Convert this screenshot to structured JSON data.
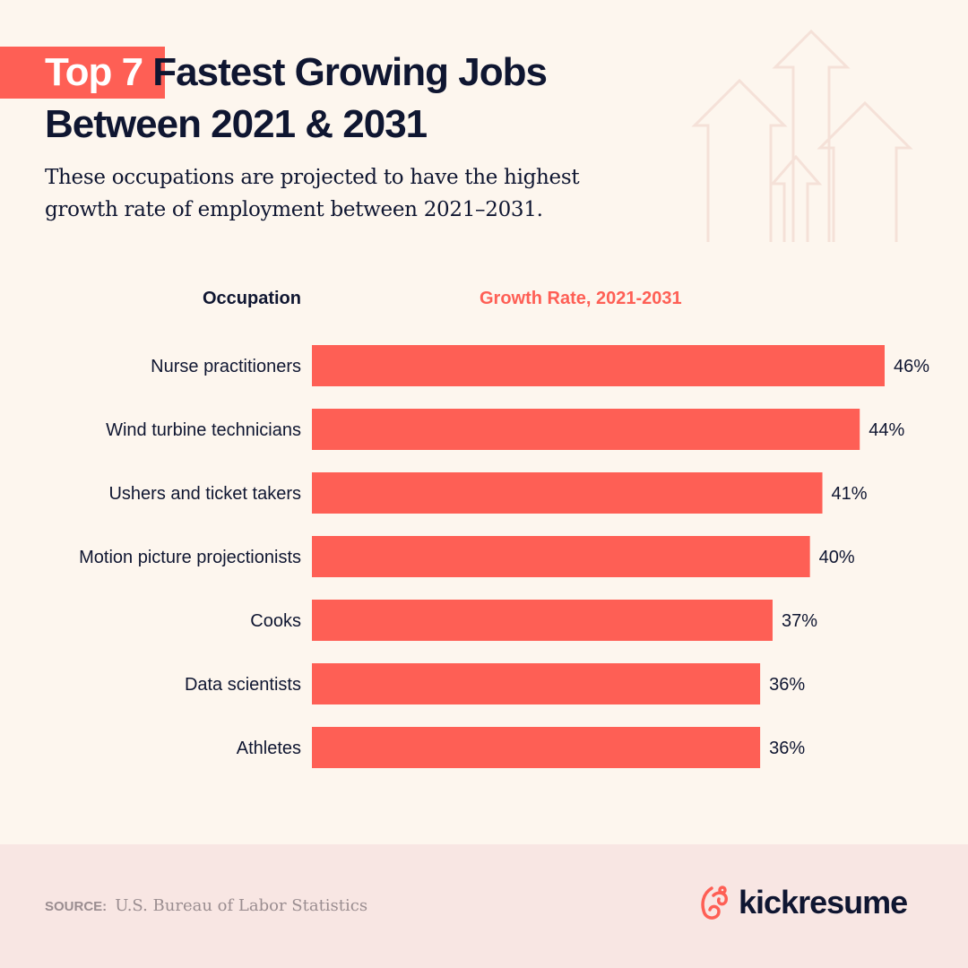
{
  "header": {
    "title_highlight": "Top 7",
    "title_line1_rest": "Fastest Growing Jobs",
    "title_line2": "Between 2021 & 2031",
    "subtitle_line1": "These occupations are projected to have the highest",
    "subtitle_line2": "growth rate of employment between 2021–2031."
  },
  "chart_data": {
    "type": "bar",
    "orientation": "horizontal",
    "category_header": "Occupation",
    "value_header": "Growth Rate, 2021-2031",
    "categories": [
      "Nurse practitioners",
      "Wind turbine technicians",
      "Ushers and ticket takers",
      "Motion picture projectionists",
      "Cooks",
      "Data scientists",
      "Athletes"
    ],
    "values": [
      46,
      44,
      41,
      40,
      37,
      36,
      36
    ],
    "labels": [
      "46%",
      "44%",
      "41%",
      "40%",
      "37%",
      "36%",
      "36%"
    ],
    "unit": "%",
    "grid": false,
    "bar_color": "#fe5f55"
  },
  "footer": {
    "source_label": "SOURCE:",
    "source_text": "U.S. Bureau of Labor Statistics",
    "brand": "kickresume"
  },
  "colors": {
    "accent": "#fe5f55",
    "text": "#0f1631",
    "background": "#fdf6ee",
    "footer": "#f8e6e3"
  }
}
